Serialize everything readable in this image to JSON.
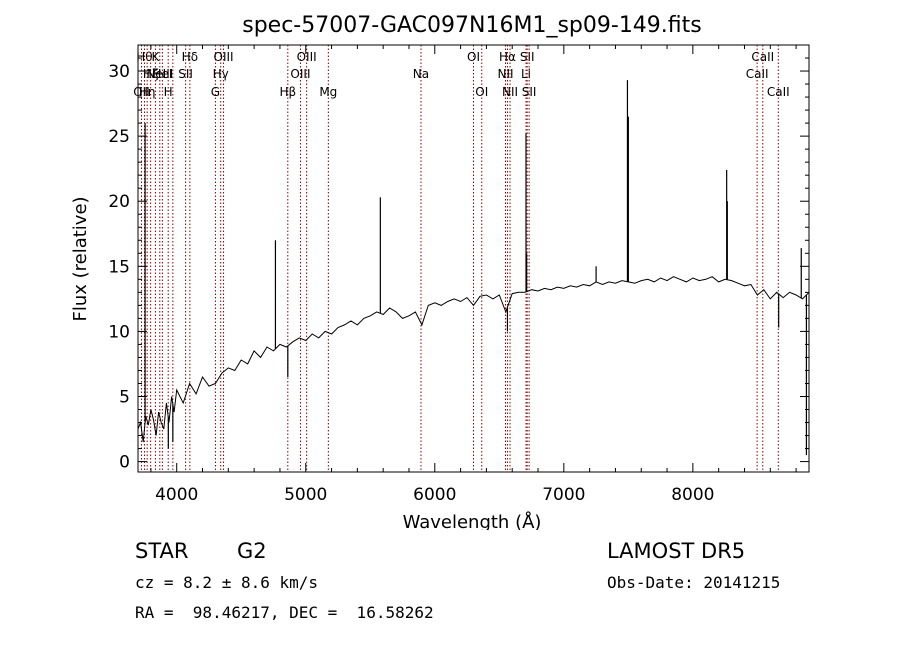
{
  "chart_data": {
    "type": "line",
    "title": "spec-57007-GAC097N16M1_sp09-149.fits",
    "xlabel": "Wavelength (Å)",
    "ylabel": "Flux (relative)",
    "xlim": [
      3700,
      8900
    ],
    "ylim": [
      -0.8,
      32.0
    ],
    "x_ticks": [
      4000,
      5000,
      6000,
      7000,
      8000
    ],
    "y_ticks": [
      0,
      5,
      10,
      15,
      20,
      25,
      30
    ],
    "grid": false,
    "legend": "none",
    "line_color": "#000000",
    "marker_color": "#8b0000",
    "series": [
      {
        "x": [
          3700,
          3720,
          3740,
          3760,
          3780,
          3800,
          3820,
          3840,
          3860,
          3880,
          3900,
          3920,
          3940,
          3960,
          3980,
          4000,
          4050,
          4100,
          4150,
          4200,
          4250,
          4300,
          4350,
          4400,
          4450,
          4500,
          4550,
          4600,
          4650,
          4700,
          4750,
          4800,
          4850,
          4900,
          4950,
          5000,
          5050,
          5100,
          5150,
          5200,
          5250,
          5300,
          5350,
          5400,
          5450,
          5500,
          5550,
          5600,
          5650,
          5700,
          5750,
          5800,
          5850,
          5900,
          5950,
          6000,
          6050,
          6100,
          6150,
          6200,
          6250,
          6300,
          6350,
          6400,
          6450,
          6500,
          6550,
          6600,
          6650,
          6700,
          6750,
          6800,
          6850,
          6900,
          6950,
          7000,
          7050,
          7100,
          7150,
          7200,
          7250,
          7300,
          7350,
          7400,
          7450,
          7500,
          7550,
          7600,
          7650,
          7700,
          7750,
          7800,
          7850,
          7900,
          7950,
          8000,
          8050,
          8100,
          8150,
          8200,
          8250,
          8300,
          8350,
          8400,
          8450,
          8500,
          8550,
          8600,
          8650,
          8700,
          8750,
          8800,
          8850,
          8900
        ],
        "y": [
          2.5,
          3.0,
          1.5,
          3.5,
          2.8,
          4.0,
          3.2,
          2.0,
          3.8,
          3.0,
          2.5,
          4.5,
          3.0,
          5.0,
          3.8,
          5.5,
          4.5,
          6.0,
          5.2,
          6.5,
          5.8,
          6.0,
          6.8,
          7.2,
          7.0,
          7.8,
          7.5,
          8.5,
          8.0,
          8.8,
          8.5,
          9.0,
          8.8,
          9.2,
          9.5,
          9.3,
          9.8,
          9.5,
          10.0,
          9.8,
          10.3,
          10.5,
          10.8,
          10.5,
          11.0,
          11.2,
          11.5,
          11.3,
          11.8,
          11.5,
          11.0,
          11.2,
          11.5,
          10.5,
          12.0,
          12.2,
          12.0,
          12.3,
          12.5,
          12.3,
          12.6,
          12.0,
          12.7,
          12.8,
          12.5,
          12.8,
          11.5,
          12.9,
          13.0,
          13.0,
          13.2,
          13.1,
          13.3,
          13.2,
          13.4,
          13.3,
          13.5,
          13.4,
          13.6,
          13.5,
          13.8,
          13.6,
          13.8,
          13.7,
          13.9,
          13.8,
          13.7,
          13.9,
          14.0,
          13.8,
          14.1,
          13.9,
          14.2,
          14.0,
          13.8,
          14.1,
          13.9,
          14.0,
          14.2,
          13.8,
          14.0,
          13.9,
          13.7,
          13.5,
          13.6,
          12.8,
          13.2,
          12.5,
          13.0,
          12.6,
          13.0,
          12.8,
          12.5,
          13.0
        ]
      }
    ],
    "spikes": [
      {
        "x": 3755,
        "y": 26.0
      },
      {
        "x": 4765,
        "y": 17.0
      },
      {
        "x": 5578,
        "y": 20.3
      },
      {
        "x": 6707,
        "y": 25.2
      },
      {
        "x": 6712,
        "y": 16.0
      },
      {
        "x": 7250,
        "y": 15.0
      },
      {
        "x": 7493,
        "y": 29.3
      },
      {
        "x": 7500,
        "y": 26.5
      },
      {
        "x": 8262,
        "y": 22.4
      },
      {
        "x": 8267,
        "y": 20.0
      },
      {
        "x": 8840,
        "y": 16.4
      }
    ],
    "dips": [
      {
        "x": 3935,
        "y": 1.0
      },
      {
        "x": 3970,
        "y": 1.5
      },
      {
        "x": 4861,
        "y": 6.5
      },
      {
        "x": 6563,
        "y": 10.0
      },
      {
        "x": 8665,
        "y": 10.3
      },
      {
        "x": 8880,
        "y": 0.5
      }
    ],
    "line_markers": [
      {
        "x": 3727,
        "label": "OII",
        "row": 2
      },
      {
        "x": 3750,
        "label": "Hθ",
        "row": 0
      },
      {
        "x": 3771,
        "label": "Hη",
        "row": 2
      },
      {
        "x": 3798,
        "label": "Hζ",
        "row": 1
      },
      {
        "x": 3835,
        "label": "K",
        "row": 0
      },
      {
        "x": 3869,
        "label": "NeIII",
        "row": 1
      },
      {
        "x": 3889,
        "label": "HeI",
        "row": 1
      },
      {
        "x": 3934,
        "label": "H",
        "row": 2
      },
      {
        "x": 3970,
        "label": "",
        "row": 2
      },
      {
        "x": 4069,
        "label": "SII",
        "row": 1
      },
      {
        "x": 4102,
        "label": "Hδ",
        "row": 0
      },
      {
        "x": 4300,
        "label": "G",
        "row": 2
      },
      {
        "x": 4341,
        "label": "Hγ",
        "row": 1
      },
      {
        "x": 4363,
        "label": "OIII",
        "row": 0
      },
      {
        "x": 4861,
        "label": "Hβ",
        "row": 2
      },
      {
        "x": 4959,
        "label": "OIII",
        "row": 1
      },
      {
        "x": 5007,
        "label": "OIII",
        "row": 0
      },
      {
        "x": 5175,
        "label": "Mg",
        "row": 2
      },
      {
        "x": 5893,
        "label": "Na",
        "row": 1
      },
      {
        "x": 6300,
        "label": "OI",
        "row": 0
      },
      {
        "x": 6364,
        "label": "OI",
        "row": 2
      },
      {
        "x": 6548,
        "label": "NII",
        "row": 1
      },
      {
        "x": 6563,
        "label": "Hα",
        "row": 0
      },
      {
        "x": 6583,
        "label": "NII",
        "row": 2
      },
      {
        "x": 6707,
        "label": "Li",
        "row": 1
      },
      {
        "x": 6716,
        "label": "SII",
        "row": 0
      },
      {
        "x": 6731,
        "label": "SII",
        "row": 2
      },
      {
        "x": 8498,
        "label": "CaII",
        "row": 1
      },
      {
        "x": 8542,
        "label": "CaII",
        "row": 0
      },
      {
        "x": 8662,
        "label": "CaII",
        "row": 2
      }
    ]
  },
  "info": {
    "object_class": "STAR",
    "subclass": "G2",
    "survey": "LAMOST DR5",
    "redshift_line": "cz = 8.2 ± 8.6 km/s",
    "obs_date": "Obs-Date: 20141215",
    "coordinates": "RA =  98.46217, DEC =  16.58262"
  }
}
